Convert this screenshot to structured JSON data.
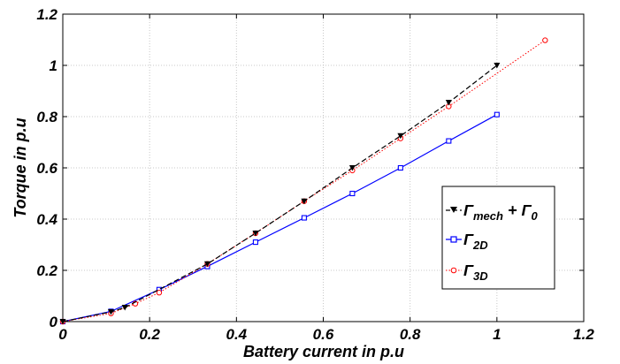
{
  "chart_data": {
    "type": "line",
    "xlabel": "Battery current in p.u",
    "ylabel": "Torque in p.u",
    "xlim": [
      0,
      1.2
    ],
    "ylim": [
      0,
      1.2
    ],
    "xticks": [
      "0",
      "0.2",
      "0.4",
      "0.6",
      "0.8",
      "1",
      "1.2"
    ],
    "yticks": [
      "0",
      "0.2",
      "0.4",
      "0.6",
      "0.8",
      "1",
      "1.2"
    ],
    "grid": true,
    "legend_position": "bottom-right",
    "series": [
      {
        "name_main": "Γ",
        "name_sub": "mech",
        "name_suffix": " + Γ",
        "name_sub2": "0",
        "color": "#000000",
        "line_style": "dashed",
        "marker": "triangle-down",
        "x": [
          0,
          0.111,
          0.143,
          0.333,
          0.444,
          0.556,
          0.667,
          0.778,
          0.889,
          1.0
        ],
        "y": [
          0,
          0.038,
          0.055,
          0.225,
          0.345,
          0.47,
          0.6,
          0.725,
          0.855,
          1.0
        ]
      },
      {
        "name_main": "Γ",
        "name_sub": "2D",
        "color": "#0000ff",
        "line_style": "solid",
        "marker": "square",
        "x": [
          0,
          0.111,
          0.222,
          0.333,
          0.444,
          0.556,
          0.667,
          0.778,
          0.889,
          1.0
        ],
        "y": [
          0,
          0.04,
          0.125,
          0.215,
          0.31,
          0.405,
          0.5,
          0.6,
          0.705,
          0.808
        ]
      },
      {
        "name_main": "Γ",
        "name_sub": "3D",
        "color": "#ff0000",
        "line_style": "dotted",
        "marker": "circle",
        "x": [
          0,
          0.111,
          0.167,
          0.222,
          0.333,
          0.444,
          0.556,
          0.667,
          0.778,
          0.889,
          1.111
        ],
        "y": [
          0,
          0.032,
          0.07,
          0.113,
          0.225,
          0.345,
          0.47,
          0.59,
          0.715,
          0.84,
          1.098
        ]
      }
    ]
  }
}
